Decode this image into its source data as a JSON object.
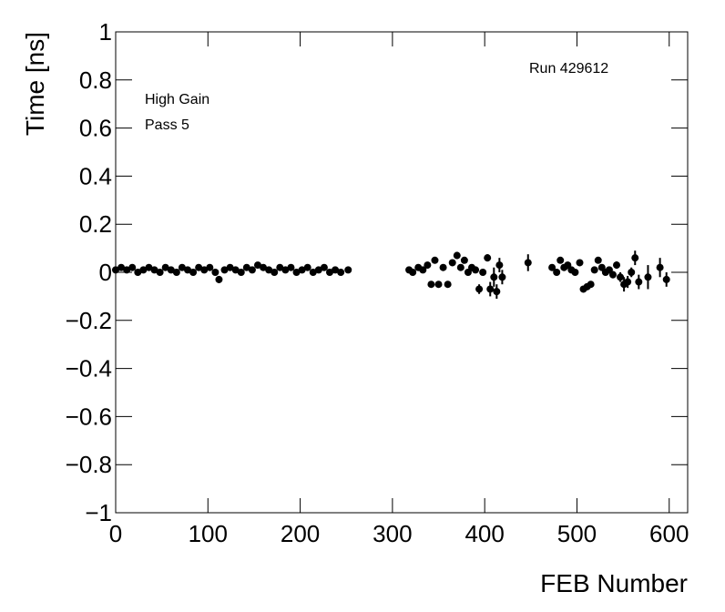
{
  "chart_data": {
    "type": "errorbar-scatter",
    "y_label": "Time [ns]",
    "x_label": "FEB Number",
    "annotations": [
      "High Gain",
      "Pass 5",
      "Run 429612"
    ],
    "xlim": [
      0,
      620
    ],
    "xticks": [
      0,
      100,
      200,
      300,
      400,
      500,
      600
    ],
    "ylim": [
      -1,
      1
    ],
    "yticks": [
      {
        "value": -1,
        "label": "−1"
      },
      {
        "value": -0.8,
        "label": "−0.8"
      },
      {
        "value": -0.6,
        "label": "−0.6"
      },
      {
        "value": -0.4,
        "label": "−0.4"
      },
      {
        "value": -0.2,
        "label": "−0.2"
      },
      0,
      0.2,
      0.4,
      0.6,
      0.8,
      1
    ],
    "color": "#000000",
    "x": [
      0,
      6,
      12,
      18,
      24,
      30,
      36,
      42,
      48,
      54,
      60,
      66,
      72,
      78,
      84,
      90,
      96,
      102,
      108,
      112,
      118,
      124,
      130,
      136,
      142,
      148,
      154,
      160,
      166,
      172,
      178,
      184,
      190,
      196,
      202,
      208,
      214,
      220,
      226,
      232,
      238,
      244,
      252,
      318,
      322,
      328,
      333,
      338,
      342,
      346,
      350,
      355,
      360,
      365,
      370,
      374,
      378,
      382,
      386,
      390,
      394,
      398,
      403,
      406,
      410,
      413,
      416,
      419,
      447,
      473,
      478,
      482,
      486,
      490,
      494,
      498,
      503,
      507,
      511,
      515,
      519,
      523,
      527,
      531,
      535,
      539,
      543,
      547,
      551,
      555,
      559,
      563,
      567,
      577,
      590,
      597
    ],
    "values": [
      0.01,
      0.02,
      0.01,
      0.02,
      0.0,
      0.01,
      0.02,
      0.01,
      0.0,
      0.02,
      0.01,
      0.0,
      0.02,
      0.01,
      0.0,
      0.02,
      0.01,
      0.02,
      0.0,
      -0.03,
      0.01,
      0.02,
      0.01,
      0.0,
      0.02,
      0.01,
      0.03,
      0.02,
      0.01,
      0.0,
      0.02,
      0.01,
      0.02,
      0.0,
      0.01,
      0.02,
      0.0,
      0.01,
      0.02,
      0.0,
      0.01,
      0.0,
      0.01,
      0.01,
      0.0,
      0.02,
      0.01,
      0.03,
      -0.05,
      0.05,
      -0.05,
      0.02,
      -0.05,
      0.04,
      0.07,
      0.02,
      0.05,
      0.0,
      0.02,
      0.01,
      -0.07,
      0.0,
      0.06,
      -0.07,
      -0.02,
      -0.08,
      0.03,
      -0.02,
      0.04,
      0.02,
      0.0,
      0.05,
      0.02,
      0.03,
      0.01,
      0.0,
      0.04,
      -0.07,
      -0.06,
      -0.05,
      0.01,
      0.05,
      0.02,
      0.0,
      0.01,
      -0.01,
      0.03,
      -0.02,
      -0.05,
      -0.04,
      0.0,
      0.06,
      -0.04,
      -0.02,
      0.02,
      -0.03
    ],
    "errors": [
      0.01,
      0.01,
      0.01,
      0.01,
      0.01,
      0.01,
      0.01,
      0.01,
      0.01,
      0.01,
      0.01,
      0.01,
      0.01,
      0.01,
      0.01,
      0.01,
      0.01,
      0.01,
      0.01,
      0.015,
      0.01,
      0.01,
      0.01,
      0.01,
      0.01,
      0.01,
      0.01,
      0.01,
      0.01,
      0.01,
      0.01,
      0.01,
      0.01,
      0.01,
      0.01,
      0.01,
      0.01,
      0.01,
      0.01,
      0.01,
      0.01,
      0.01,
      0.01,
      0.01,
      0.01,
      0.01,
      0.01,
      0.01,
      0.01,
      0.01,
      0.01,
      0.01,
      0.01,
      0.01,
      0.015,
      0.01,
      0.01,
      0.01,
      0.01,
      0.01,
      0.02,
      0.01,
      0.015,
      0.03,
      0.04,
      0.03,
      0.03,
      0.03,
      0.035,
      0.01,
      0.01,
      0.01,
      0.01,
      0.01,
      0.01,
      0.01,
      0.01,
      0.01,
      0.01,
      0.01,
      0.01,
      0.01,
      0.01,
      0.01,
      0.01,
      0.015,
      0.015,
      0.02,
      0.03,
      0.025,
      0.02,
      0.03,
      0.03,
      0.05,
      0.04,
      0.03
    ]
  }
}
